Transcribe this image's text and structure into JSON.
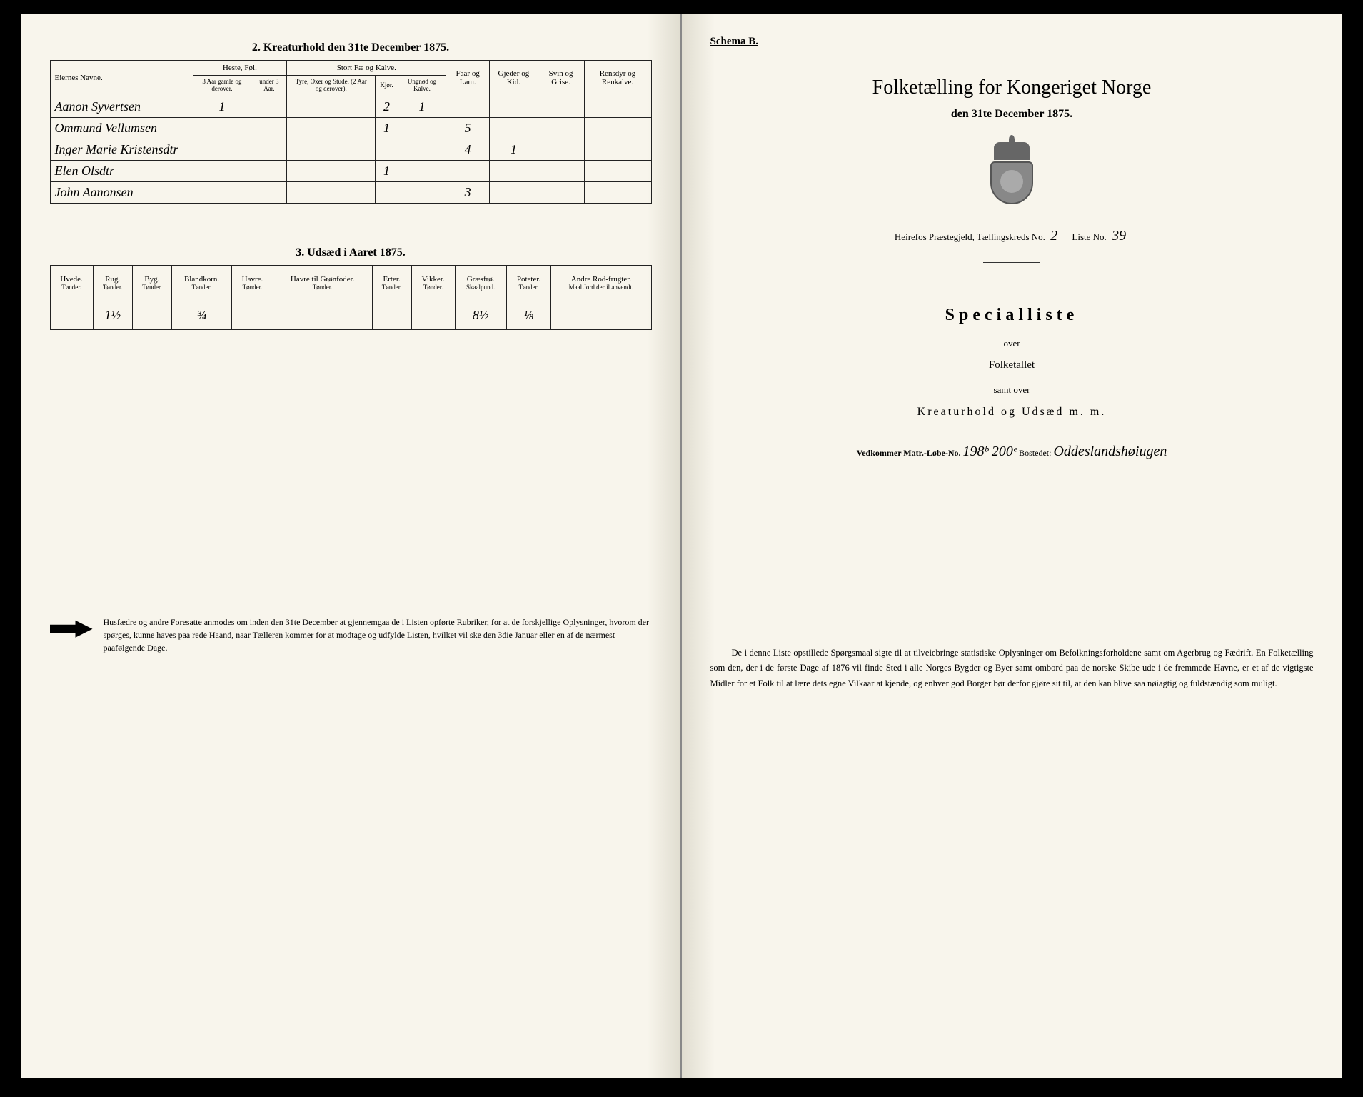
{
  "left": {
    "section2_title": "2. Kreaturhold den 31te December 1875.",
    "table2": {
      "headers": {
        "eiernes_navne": "Eiernes Navne.",
        "heste_fol": "Heste, Føl.",
        "stort_fae": "Stort Fæ og Kalve.",
        "faar_lam": "Faar og Lam.",
        "gjeder_kid": "Gjeder og Kid.",
        "svin_grise": "Svin og Grise.",
        "rensdyr": "Rensdyr og Renkalve."
      },
      "subheaders": {
        "heste_a": "3 Aar gamle og derover.",
        "heste_b": "under 3 Aar.",
        "fae_a": "Tyre, Oxer og Stude, (2 Aar og derover).",
        "fae_b": "Kjør.",
        "fae_c": "Ungnød og Kalve."
      },
      "rows": [
        {
          "name": "Aanon Syvertsen",
          "heste_a": "1",
          "heste_b": "",
          "fae_a": "",
          "fae_b": "2",
          "fae_c": "1",
          "faar": "",
          "gjeder": "",
          "svin": "",
          "ren": ""
        },
        {
          "name": "Ommund Vellumsen",
          "heste_a": "",
          "heste_b": "",
          "fae_a": "",
          "fae_b": "1",
          "fae_c": "",
          "faar": "5",
          "gjeder": "",
          "svin": "",
          "ren": ""
        },
        {
          "name": "Inger Marie Kristensdtr",
          "heste_a": "",
          "heste_b": "",
          "fae_a": "",
          "fae_b": "",
          "fae_c": "",
          "faar": "4",
          "gjeder": "1",
          "svin": "",
          "ren": ""
        },
        {
          "name": "Elen Olsdtr",
          "heste_a": "",
          "heste_b": "",
          "fae_a": "",
          "fae_b": "1",
          "fae_c": "",
          "faar": "",
          "gjeder": "",
          "svin": "",
          "ren": ""
        },
        {
          "name": "John Aanonsen",
          "heste_a": "",
          "heste_b": "",
          "fae_a": "",
          "fae_b": "",
          "fae_c": "",
          "faar": "3",
          "gjeder": "",
          "svin": "",
          "ren": ""
        }
      ]
    },
    "section3_title": "3. Udsæd i Aaret 1875.",
    "table3": {
      "headers": {
        "hvede": "Hvede.",
        "rug": "Rug.",
        "byg": "Byg.",
        "blandkorn": "Blandkorn.",
        "havre": "Havre.",
        "havre_gron": "Havre til Grønfoder.",
        "erter": "Erter.",
        "vikker": "Vikker.",
        "graesfro": "Græsfrø.",
        "poteter": "Poteter.",
        "andre": "Andre Rod-frugter."
      },
      "unit_tonder": "Tønder.",
      "unit_skaalpund": "Skaalpund.",
      "unit_maal": "Maal Jord dertil anvendt.",
      "row": {
        "hvede": "",
        "rug": "1½",
        "byg": "",
        "blandkorn": "¾",
        "havre": "",
        "havre_gron": "",
        "erter": "",
        "vikker": "",
        "graesfro": "8½",
        "poteter": "⅛",
        "andre": ""
      }
    },
    "footnote": "Husfædre og andre Foresatte anmodes om inden den 31te December at gjennemgaa de i Listen opførte Rubriker, for at de forskjellige Oplysninger, hvorom der spørges, kunne haves paa rede Haand, naar Tælleren kommer for at modtage og udfylde Listen, hvilket vil ske den 3die Januar eller en af de nærmest paafølgende Dage."
  },
  "right": {
    "schema": "Schema B.",
    "title": "Folketælling for Kongeriget Norge",
    "date": "den 31te December 1875.",
    "meta": {
      "prefix": "Heirefos Præstegjeld, Tællingskreds No.",
      "kreds_no": "2",
      "liste_label": "Liste No.",
      "liste_no": "39"
    },
    "specialliste": "Specialliste",
    "over": "over",
    "folketallet": "Folketallet",
    "samt_over": "samt over",
    "kreatur": "Kreaturhold og Udsæd m. m.",
    "vedkommer": {
      "prefix": "Vedkommer Matr.-Løbe-No.",
      "numbers": "198ᵇ 200ᵉ",
      "bosted_label": "Bostedet:",
      "bosted": "Oddeslandshøiugen"
    },
    "body": "De i denne Liste opstillede Spørgsmaal sigte til at tilveiebringe statistiske Oplysninger om Befolkningsforholdene samt om Agerbrug og Fædrift. En Folketælling som den, der i de første Dage af 1876 vil finde Sted i alle Norges Bygder og Byer samt ombord paa de norske Skibe ude i de fremmede Havne, er et af de vigtigste Midler for et Folk til at lære dets egne Vilkaar at kjende, og enhver god Borger bør derfor gjøre sit til, at den kan blive saa nøiagtig og fuldstændig som muligt."
  }
}
